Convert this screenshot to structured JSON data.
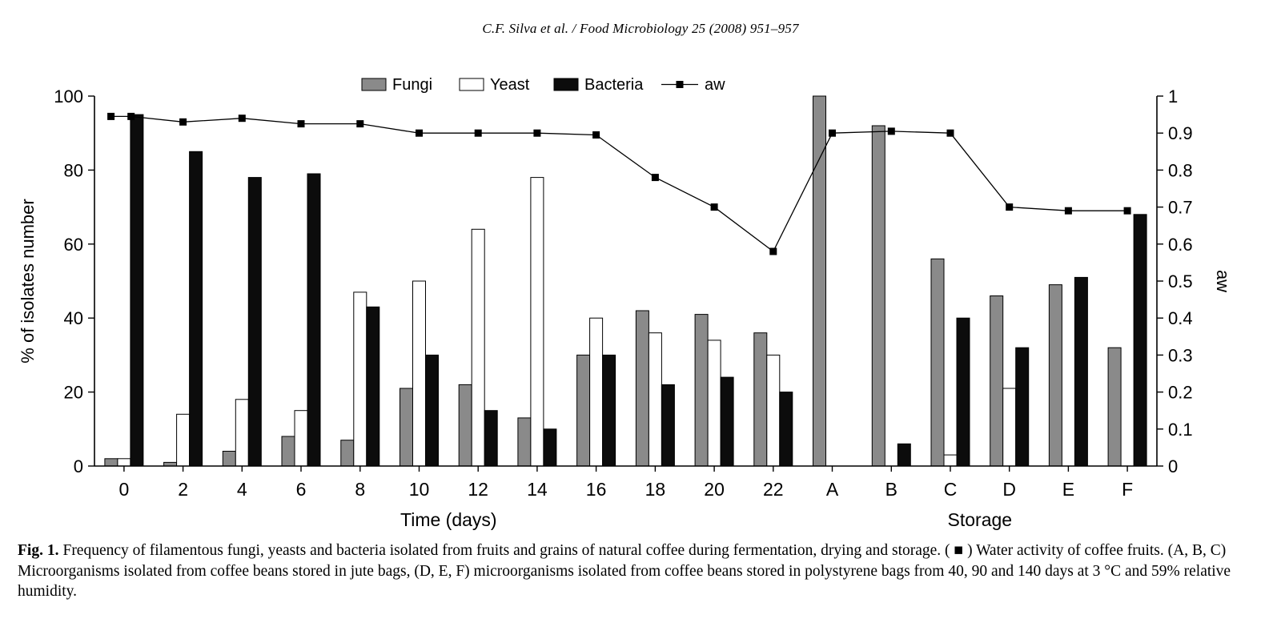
{
  "header": {
    "running_title": "C.F. Silva et al. / Food Microbiology 25 (2008) 951–957"
  },
  "chart_data": {
    "type": "bar",
    "categories": [
      "0",
      "2",
      "4",
      "6",
      "8",
      "10",
      "12",
      "14",
      "16",
      "18",
      "20",
      "22",
      "A",
      "B",
      "C",
      "D",
      "E",
      "F"
    ],
    "series": [
      {
        "name": "Fungi",
        "color": "#8a8a8a",
        "values": [
          2,
          1,
          4,
          8,
          7,
          21,
          22,
          13,
          30,
          42,
          41,
          36,
          100,
          92,
          56,
          46,
          49,
          32
        ]
      },
      {
        "name": "Yeast",
        "color": "#ffffff",
        "values": [
          2,
          14,
          18,
          15,
          47,
          50,
          64,
          78,
          40,
          36,
          34,
          30,
          0,
          0,
          3,
          21,
          0,
          0
        ]
      },
      {
        "name": "Bacteria",
        "color": "#0c0c0c",
        "values": [
          95,
          85,
          78,
          79,
          43,
          30,
          15,
          10,
          30,
          22,
          24,
          20,
          0,
          6,
          40,
          32,
          51,
          68
        ]
      }
    ],
    "line_series": {
      "name": "aw",
      "marker": "square",
      "x": [
        -0.22,
        0.12,
        1,
        2,
        3,
        4,
        5,
        6,
        7,
        8,
        9,
        10,
        11,
        12,
        13,
        14,
        15,
        16,
        17
      ],
      "values": [
        0.945,
        0.945,
        0.93,
        0.94,
        0.925,
        0.925,
        0.9,
        0.9,
        0.9,
        0.895,
        0.78,
        0.7,
        0.58,
        0.9,
        0.905,
        0.9,
        0.7,
        0.69,
        0.69
      ]
    },
    "title": "",
    "xlabel_left": "Time (days)",
    "xlabel_right": "Storage",
    "ylabel_left": "% of isolates number",
    "ylabel_right": "aw",
    "ylim_left": [
      0,
      100
    ],
    "ylim_right": [
      0,
      1
    ],
    "yticks_left": [
      0,
      20,
      40,
      60,
      80,
      100
    ],
    "yticks_right": [
      "0",
      "0.1",
      "0.2",
      "0.3",
      "0.4",
      "0.5",
      "0.6",
      "0.7",
      "0.8",
      "0.9",
      "1"
    ],
    "grid": false,
    "legend_position": "top"
  },
  "caption": {
    "label": "Fig. 1.",
    "text": "Frequency of filamentous fungi, yeasts and bacteria isolated from fruits and grains of natural coffee during fermentation, drying and storage. ( ■ ) Water activity of coffee fruits. (A, B, C) Microorganisms isolated from coffee beans stored in jute bags, (D, E, F) microorganisms isolated from coffee beans stored in polystyrene bags from 40, 90 and 140 days at 3 °C and 59% relative humidity."
  }
}
